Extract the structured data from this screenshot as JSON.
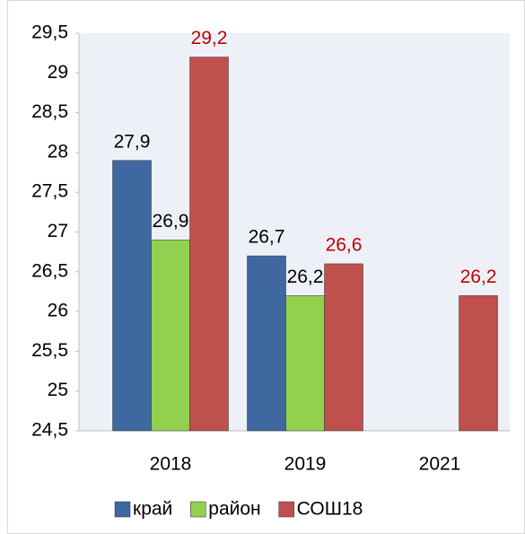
{
  "chart_data": {
    "type": "bar",
    "categories": [
      "2018",
      "2019",
      "2021"
    ],
    "series": [
      {
        "name": "край",
        "color": "#3f67a0",
        "label_color": "#000000",
        "values": [
          27.9,
          26.7,
          null
        ],
        "value_labels": [
          "27,9",
          "26,7",
          null
        ]
      },
      {
        "name": "район",
        "color": "#92d050",
        "label_color": "#000000",
        "values": [
          26.9,
          26.2,
          null
        ],
        "value_labels": [
          "26,9",
          "26,2",
          null
        ]
      },
      {
        "name": "СОШ18",
        "color": "#c0504d",
        "label_color": "#c00000",
        "values": [
          29.2,
          26.6,
          26.2
        ],
        "value_labels": [
          "29,2",
          "26,6",
          "26,2"
        ]
      }
    ],
    "ylim": [
      24.5,
      29.5
    ],
    "yticks": [
      {
        "value": 24.5,
        "label": "24,5"
      },
      25,
      {
        "value": 25.5,
        "label": "25,5"
      },
      26,
      {
        "value": 26.5,
        "label": "26,5"
      },
      27,
      {
        "value": 27.5,
        "label": "27,5"
      },
      28,
      {
        "value": 28.5,
        "label": "28,5"
      },
      29,
      {
        "value": 29.5,
        "label": "29,5"
      }
    ],
    "legend": "bottom"
  }
}
